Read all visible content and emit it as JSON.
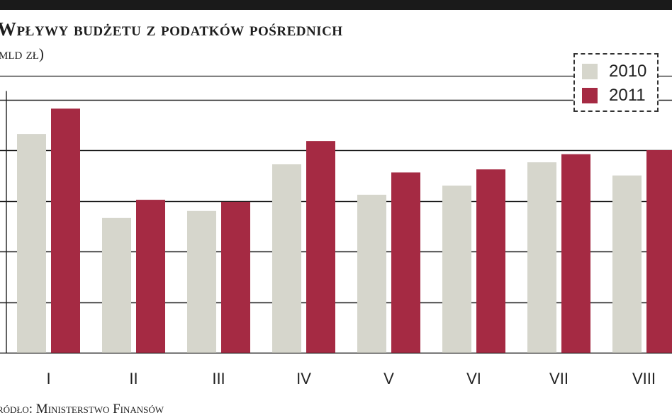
{
  "header": {
    "title": "Wpływy budżetu z podatków pośrednich",
    "subtitle": "mld zł)"
  },
  "footer": {
    "source": "ródło: Ministerstwo Finansów"
  },
  "colors": {
    "series_2010": "#d6d6cc",
    "series_2011": "#a52a43",
    "gridline": "#1e1e1e",
    "top_bar": "#1a1a1a"
  },
  "chart_data": {
    "type": "bar",
    "title": "Wpływy budżetu z podatków pośrednich",
    "subtitle": "mld zł)",
    "xlabel": "",
    "ylabel": "",
    "categories": [
      "I",
      "II",
      "III",
      "IV",
      "V",
      "VI",
      "VII",
      "VIII"
    ],
    "series": [
      {
        "name": "2010",
        "values": [
          21.6,
          13.3,
          14.0,
          18.6,
          15.6,
          16.5,
          18.8,
          17.5
        ]
      },
      {
        "name": "2011",
        "values": [
          24.1,
          15.1,
          14.9,
          20.9,
          17.8,
          18.1,
          19.6,
          20.0
        ]
      }
    ],
    "ylim": [
      0,
      25
    ],
    "ygrid_step": 5,
    "grid": true,
    "y_tick_labels_visible": false,
    "legend": {
      "position": "top-right",
      "entries": [
        "2010",
        "2011"
      ]
    },
    "source": "ródło: Ministerstwo Finansów"
  }
}
